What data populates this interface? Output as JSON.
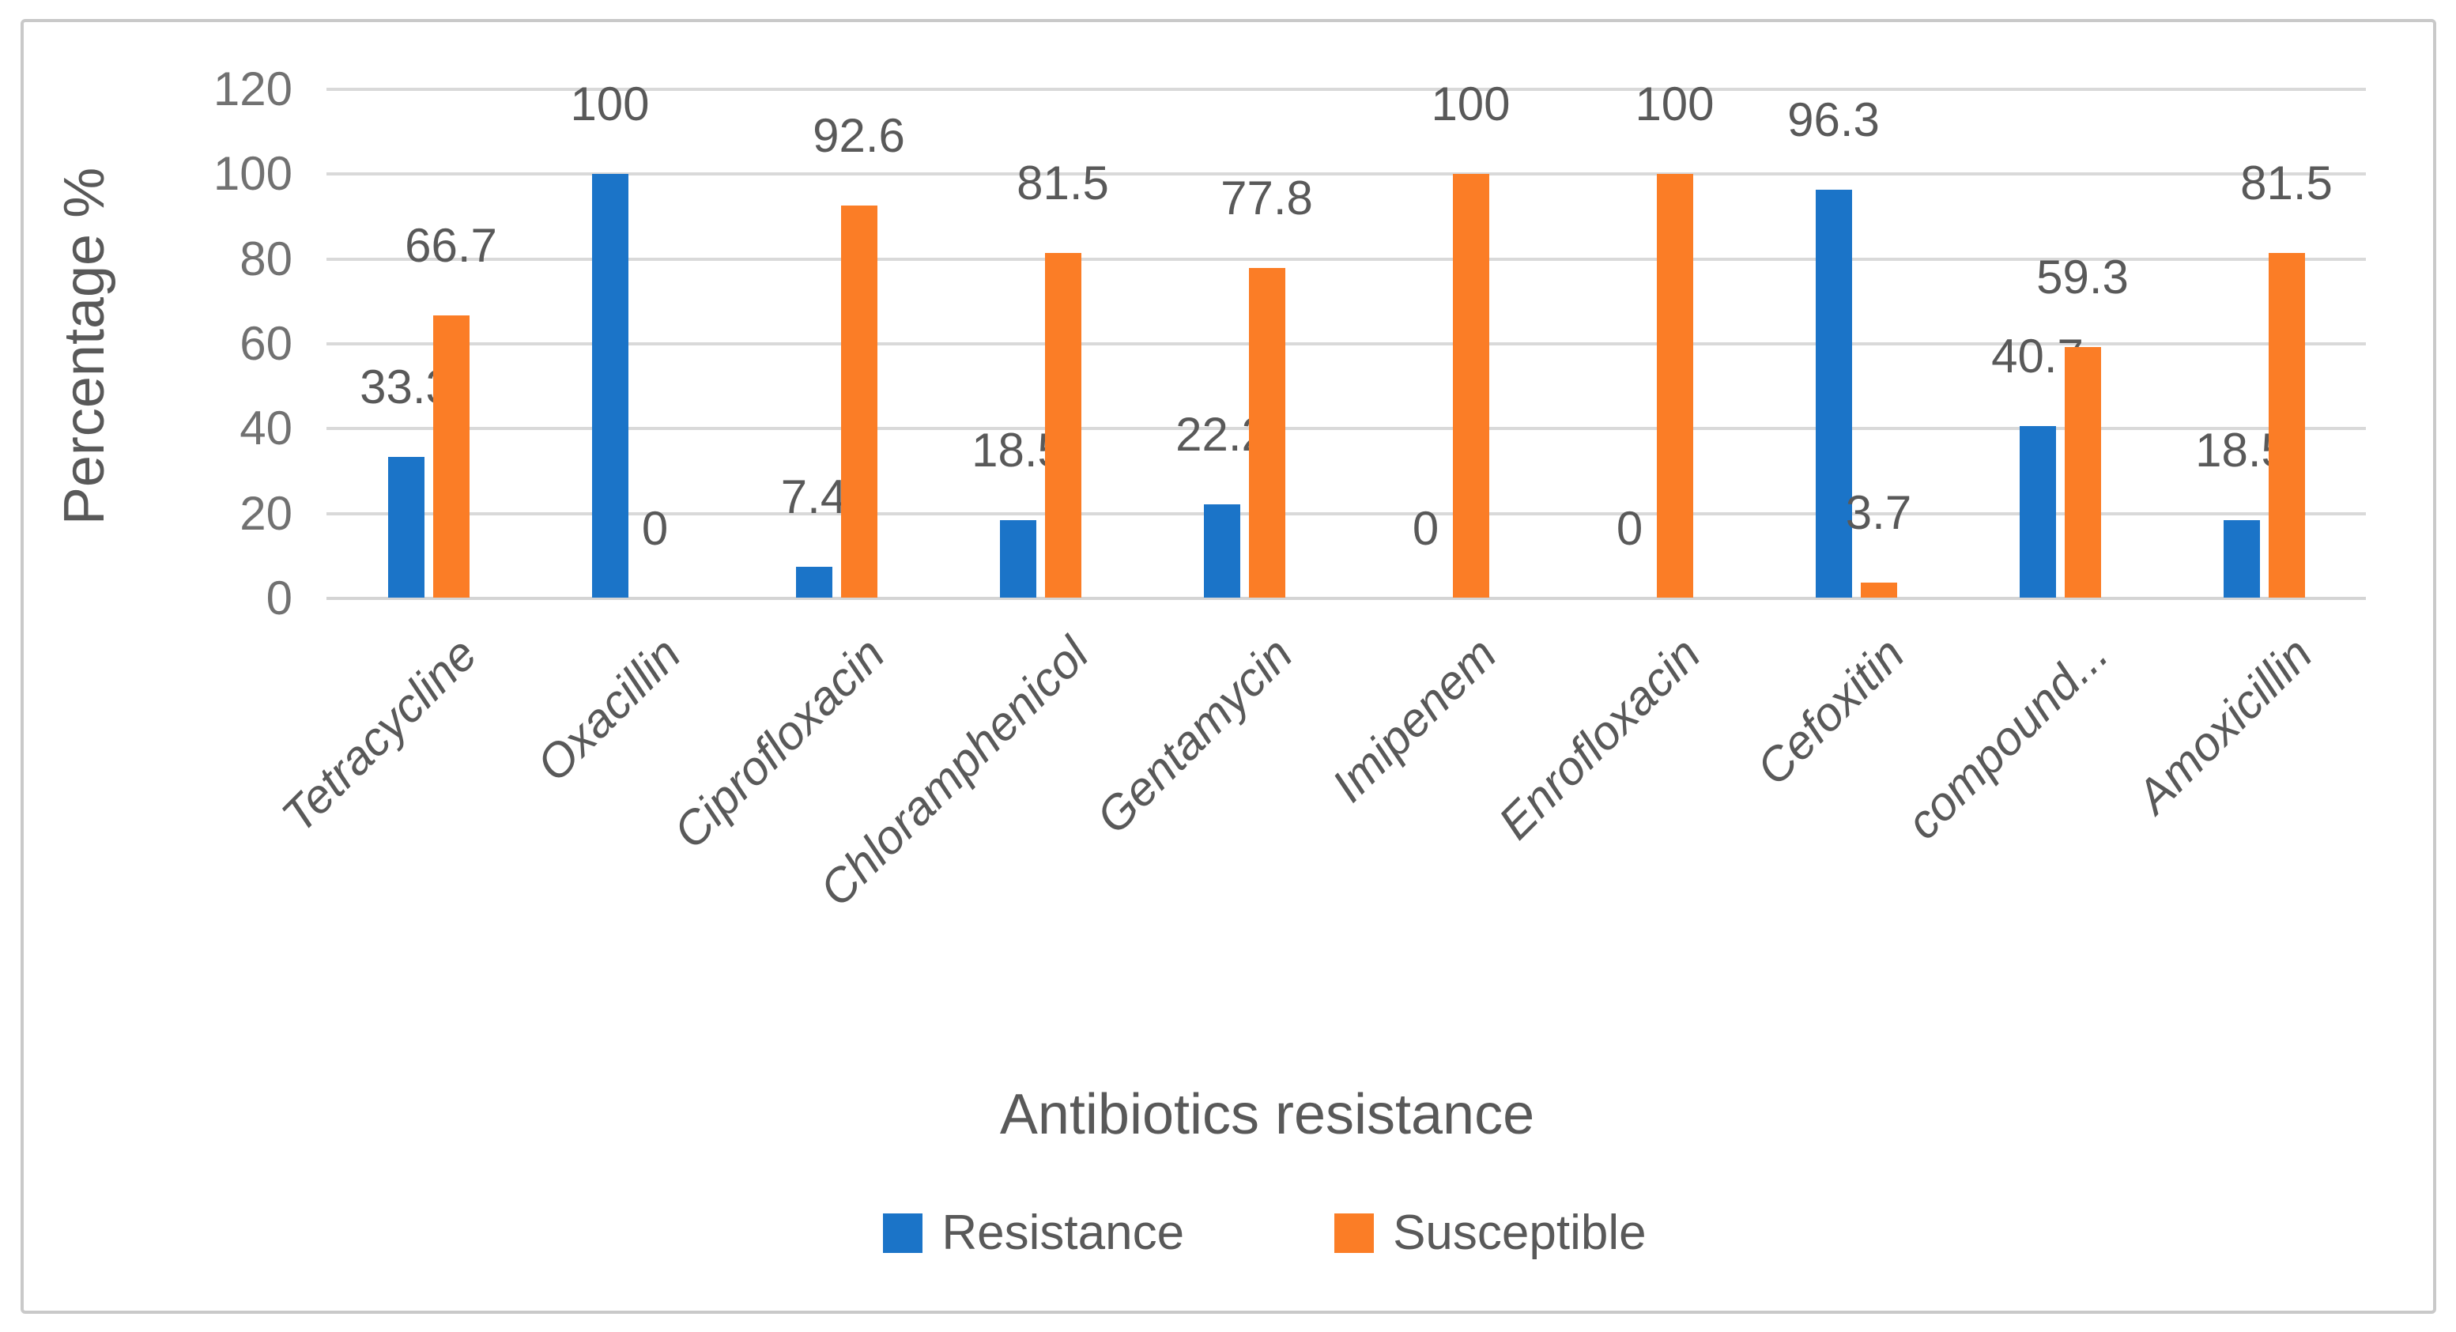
{
  "chart_data": {
    "type": "bar",
    "title": "",
    "xlabel": "Antibiotics resistance",
    "ylabel": "Percentage %",
    "categories": [
      "Tetracycline",
      "Oxacillin",
      "Ciprofloxacin",
      "Chloramphenicol",
      "Gentamycin",
      "Imipenem",
      "Enrofloxacin",
      "Cefoxitin",
      "compound...",
      "Amoxicillin"
    ],
    "series": [
      {
        "name": "Resistance",
        "color": "#1B74C8",
        "values": [
          33.3,
          100,
          7.4,
          18.5,
          22.2,
          0,
          0,
          96.3,
          40.7,
          18.5
        ]
      },
      {
        "name": "Susceptible",
        "color": "#FB7D26",
        "values": [
          66.7,
          0,
          92.6,
          81.5,
          77.8,
          100,
          100,
          3.7,
          59.3,
          81.5
        ]
      }
    ],
    "ylim": [
      0,
      120
    ],
    "yticks": [
      0,
      20,
      40,
      60,
      80,
      100,
      120
    ],
    "grid": true,
    "legend_position": "bottom",
    "data_labels": true,
    "colors": {
      "gridline": "#d9d9d9",
      "tick_text": "#717171",
      "label_text": "#595959",
      "frame": "#c9c9c9",
      "background": "#ffffff"
    }
  }
}
